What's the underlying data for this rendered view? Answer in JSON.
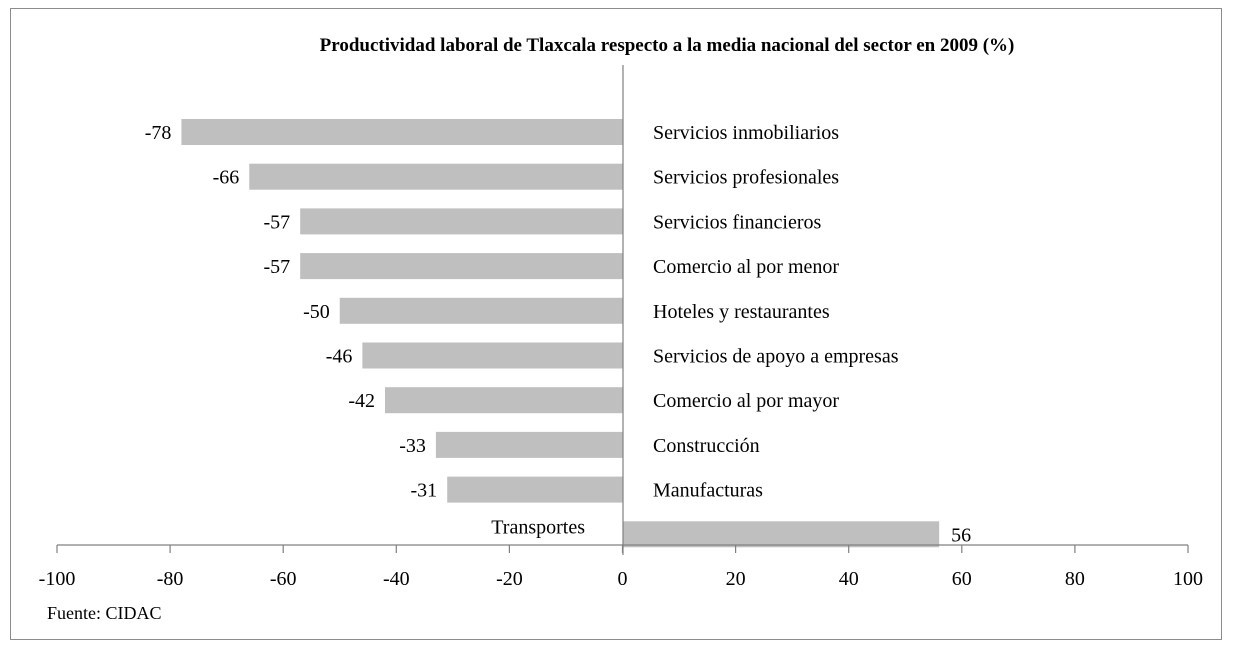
{
  "chart_data": {
    "type": "bar",
    "orientation": "horizontal",
    "title": "Productividad laboral de Tlaxcala respecto a la media nacional del sector en 2009 (%)",
    "categories": [
      "Servicios inmobiliarios",
      "Servicios profesionales",
      "Servicios financieros",
      "Comercio al por menor",
      "Hoteles y restaurantes",
      "Servicios de apoyo a empresas",
      "Comercio al por mayor",
      "Construcción",
      "Manufacturas",
      "Transportes"
    ],
    "values": [
      -78,
      -66,
      -57,
      -57,
      -50,
      -46,
      -42,
      -33,
      -31,
      56
    ],
    "value_labels": [
      "-78",
      "-66",
      "-57",
      "-57",
      "-50",
      "-46",
      "-42",
      "-33",
      "-31",
      "56"
    ],
    "xlim": [
      -100,
      100
    ],
    "xticks": [
      -100,
      -80,
      -60,
      -40,
      -20,
      0,
      20,
      40,
      60,
      80,
      100
    ],
    "xtick_labels": [
      "-100",
      "-80",
      "-60",
      "-40",
      "-20",
      "0",
      "20",
      "40",
      "60",
      "80",
      "100"
    ],
    "bar_color": "#bfbfbf",
    "grid": false,
    "legend": "none"
  },
  "source": "Fuente: CIDAC"
}
